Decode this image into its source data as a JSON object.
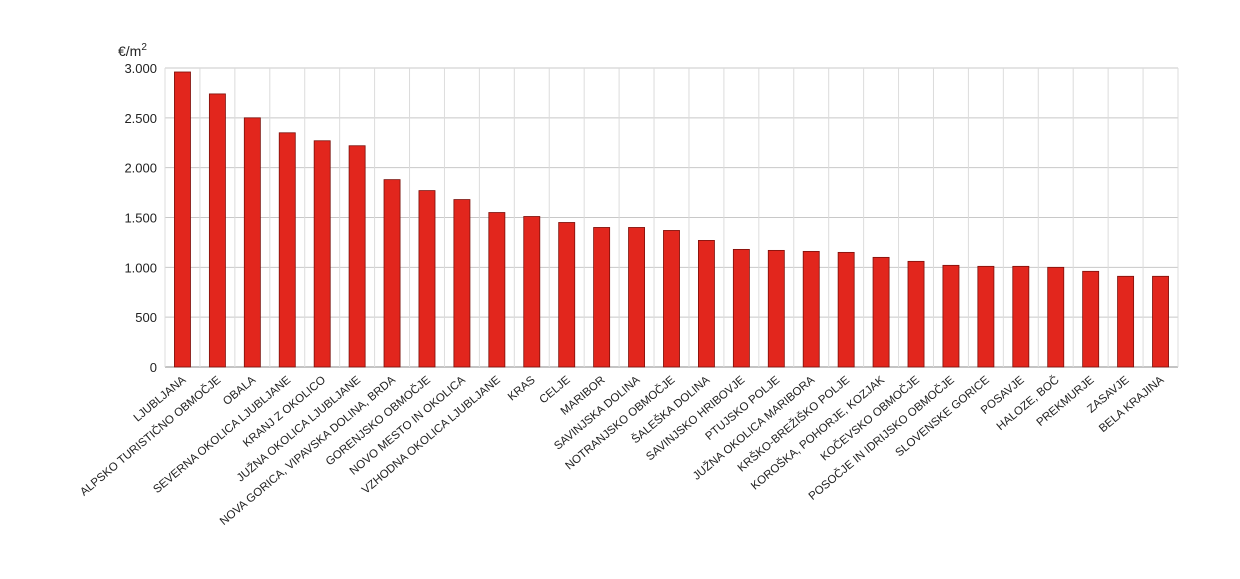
{
  "chart_data": {
    "type": "bar",
    "title": "",
    "xlabel": "",
    "ylabel": "€/m",
    "ylabel_superscript": "2",
    "ylim": [
      0,
      3000
    ],
    "yticks": [
      0,
      500,
      1000,
      1500,
      2000,
      2500,
      3000
    ],
    "ytick_labels": [
      "0",
      "500",
      "1.000",
      "1.500",
      "2.000",
      "2.500",
      "3.000"
    ],
    "grid": true,
    "legend": "none",
    "bar_color": "#e2261d",
    "bar_edge_color": "#7a0f0a",
    "categories": [
      "LJUBLJANA",
      "ALPSKO TURISTIČNO OBMOČJE",
      "OBALA",
      "SEVERNA OKOLICA LJUBLJANE",
      "KRANJ Z OKOLICO",
      "JUŽNA OKOLICA LJUBLJANE",
      "NOVA GORICA, VIPAVSKA DOLINA, BRDA",
      "GORENJSKO OBMOČJE",
      "NOVO MESTO IN OKOLICA",
      "VZHODNA OKOLICA LJUBLJANE",
      "KRAS",
      "CELJE",
      "MARIBOR",
      "SAVINJSKA DOLINA",
      "NOTRANJSKO OBMOČJE",
      "ŠALEŠKA DOLINA",
      "SAVINJSKO HRIBOVJE",
      "PTUJSKO POLJE",
      "JUŽNA OKOLICA MARIBORA",
      "KRŠKO-BREŽIŠKO POLJE",
      "KOROŠKA, POHORJE, KOZJAK",
      "KOČEVSKO OBMOČJE",
      "POSOČJE IN IDRIJSKO OBMOČJE",
      "SLOVENSKE GORICE",
      "POSAVJE",
      "HALOZE, BOČ",
      "PREKMURJE",
      "ZASAVJE",
      "BELA KRAJINA"
    ],
    "values": [
      2960,
      2740,
      2500,
      2350,
      2270,
      2220,
      1880,
      1770,
      1680,
      1550,
      1510,
      1450,
      1400,
      1400,
      1370,
      1270,
      1180,
      1170,
      1160,
      1150,
      1100,
      1060,
      1020,
      1010,
      1010,
      1000,
      960,
      910,
      910
    ]
  }
}
